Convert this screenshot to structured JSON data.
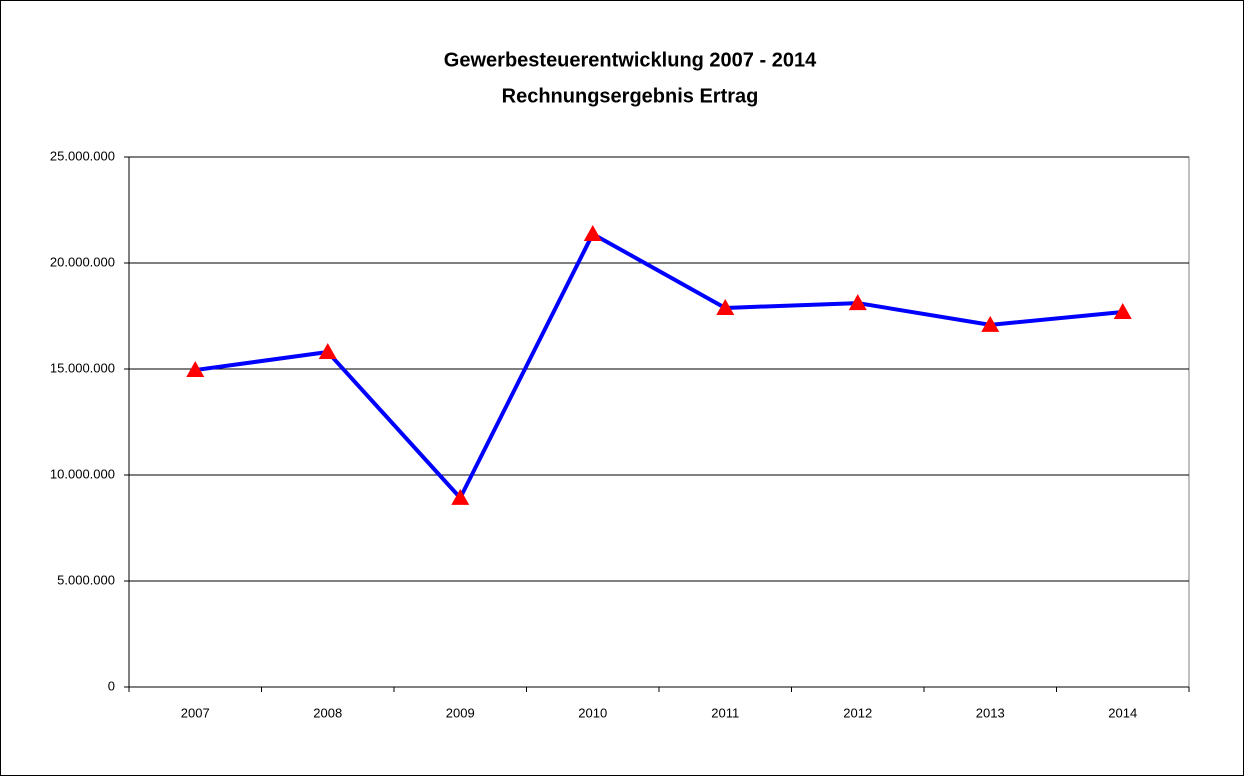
{
  "chart_data": {
    "type": "line",
    "title": "Gewerbesteuerentwicklung 2007 - 2014",
    "subtitle": "Rechnungsergebnis Ertrag",
    "categories": [
      "2007",
      "2008",
      "2009",
      "2010",
      "2011",
      "2012",
      "2013",
      "2014"
    ],
    "values": [
      14950000,
      15800000,
      8920000,
      21370000,
      17880000,
      18110000,
      17080000,
      17690000
    ],
    "color": "#0000ff",
    "marker": "triangle",
    "marker_color": "#ff0000",
    "ylim": [
      0,
      25000000
    ],
    "yticks": [
      0,
      {
        "value": 5000000,
        "label": "5.000.000"
      },
      {
        "value": 10000000,
        "label": "10.000.000"
      },
      {
        "value": 15000000,
        "label": "15.000.000"
      },
      {
        "value": 20000000,
        "label": "20.000.000"
      },
      {
        "value": 25000000,
        "label": "25.000.000"
      }
    ],
    "grid": true
  }
}
